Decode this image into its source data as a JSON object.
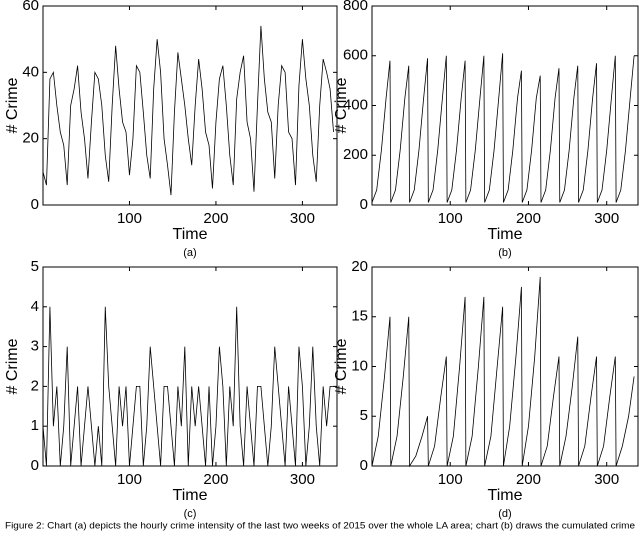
{
  "chart_data": [
    {
      "type": "line",
      "caption": "(a)",
      "xlabel": "Time",
      "ylabel": "# Crime",
      "color": "#000000",
      "xlim": [
        0,
        340
      ],
      "ylim": [
        0,
        60
      ],
      "xticks": [
        100,
        200,
        300
      ],
      "yticks": [
        0,
        20,
        40,
        60
      ],
      "x": [
        0,
        4,
        8,
        12,
        16,
        20,
        24,
        28,
        32,
        36,
        40,
        44,
        48,
        52,
        56,
        60,
        64,
        68,
        72,
        76,
        80,
        84,
        88,
        92,
        96,
        100,
        104,
        108,
        112,
        116,
        120,
        124,
        128,
        132,
        136,
        140,
        144,
        148,
        152,
        156,
        160,
        164,
        168,
        172,
        176,
        180,
        184,
        188,
        192,
        196,
        200,
        204,
        208,
        212,
        216,
        220,
        224,
        228,
        232,
        236,
        240,
        244,
        248,
        252,
        256,
        260,
        264,
        268,
        272,
        276,
        280,
        284,
        288,
        292,
        296,
        300,
        304,
        308,
        312,
        316,
        320,
        324,
        328,
        332,
        336
      ],
      "values": [
        10,
        6,
        38,
        40,
        30,
        22,
        18,
        6,
        30,
        35,
        42,
        28,
        20,
        8,
        25,
        40,
        38,
        30,
        15,
        7,
        30,
        48,
        35,
        25,
        22,
        9,
        20,
        42,
        40,
        28,
        15,
        8,
        35,
        50,
        40,
        20,
        12,
        3,
        28,
        46,
        38,
        30,
        20,
        12,
        30,
        44,
        35,
        22,
        18,
        5,
        25,
        38,
        42,
        30,
        15,
        6,
        32,
        40,
        45,
        25,
        20,
        4,
        30,
        54,
        38,
        28,
        25,
        8,
        30,
        42,
        40,
        22,
        20,
        6,
        36,
        50,
        38,
        30,
        15,
        7,
        30,
        44,
        40,
        35,
        22
      ]
    },
    {
      "type": "line",
      "caption": "(b)",
      "xlabel": "Time",
      "ylabel": "# Crime",
      "color": "#000000",
      "xlim": [
        0,
        340
      ],
      "ylim": [
        0,
        800
      ],
      "xticks": [
        100,
        200,
        300
      ],
      "yticks": [
        0,
        200,
        400,
        600,
        800
      ],
      "x": [
        0,
        6,
        12,
        18,
        23,
        24,
        30,
        36,
        42,
        47,
        48,
        54,
        60,
        66,
        71,
        72,
        78,
        84,
        90,
        95,
        96,
        102,
        108,
        114,
        119,
        120,
        126,
        132,
        138,
        143,
        144,
        150,
        156,
        162,
        167,
        168,
        174,
        180,
        186,
        191,
        192,
        198,
        204,
        210,
        215,
        216,
        222,
        228,
        234,
        239,
        240,
        246,
        252,
        258,
        263,
        264,
        270,
        276,
        282,
        287,
        288,
        294,
        300,
        306,
        311,
        312,
        318,
        324,
        330,
        335
      ],
      "values": [
        10,
        60,
        220,
        430,
        580,
        10,
        60,
        220,
        430,
        560,
        10,
        60,
        220,
        430,
        590,
        10,
        60,
        220,
        430,
        600,
        10,
        60,
        220,
        430,
        580,
        10,
        60,
        220,
        430,
        600,
        10,
        60,
        220,
        430,
        610,
        10,
        60,
        220,
        430,
        540,
        10,
        60,
        220,
        430,
        520,
        10,
        60,
        220,
        430,
        550,
        10,
        60,
        220,
        430,
        560,
        10,
        60,
        220,
        430,
        570,
        10,
        60,
        220,
        430,
        600,
        10,
        60,
        220,
        430,
        600
      ]
    },
    {
      "type": "line",
      "caption": "(c)",
      "xlabel": "Time",
      "ylabel": "# Crime",
      "color": "#000000",
      "xlim": [
        0,
        340
      ],
      "ylim": [
        0,
        5
      ],
      "xticks": [
        100,
        200,
        300
      ],
      "yticks": [
        0,
        1,
        2,
        3,
        4,
        5
      ],
      "x": [
        0,
        4,
        8,
        12,
        16,
        20,
        24,
        28,
        32,
        36,
        40,
        44,
        48,
        52,
        56,
        60,
        64,
        68,
        72,
        76,
        80,
        84,
        88,
        92,
        96,
        100,
        104,
        108,
        112,
        116,
        120,
        124,
        128,
        132,
        136,
        140,
        144,
        148,
        152,
        156,
        160,
        164,
        168,
        172,
        176,
        180,
        184,
        188,
        192,
        196,
        200,
        204,
        208,
        212,
        216,
        220,
        224,
        228,
        232,
        236,
        240,
        244,
        248,
        252,
        256,
        260,
        264,
        268,
        272,
        276,
        280,
        284,
        288,
        292,
        296,
        300,
        304,
        308,
        312,
        316,
        320,
        324,
        328,
        332,
        336
      ],
      "values": [
        1,
        0,
        4,
        1,
        2,
        0,
        1,
        3,
        0,
        1,
        2,
        0,
        1,
        2,
        1,
        0,
        1,
        0,
        4,
        2,
        1,
        0,
        2,
        1,
        2,
        0,
        1,
        2,
        2,
        0,
        1,
        3,
        2,
        1,
        0,
        2,
        2,
        1,
        0,
        2,
        1,
        3,
        0,
        2,
        1,
        2,
        1,
        0,
        2,
        0,
        1,
        3,
        2,
        0,
        2,
        1,
        4,
        1,
        0,
        2,
        1,
        0,
        2,
        2,
        1,
        0,
        1,
        3,
        2,
        1,
        0,
        2,
        1,
        0,
        3,
        2,
        0,
        1,
        3,
        1,
        0,
        2,
        1,
        2,
        2
      ]
    },
    {
      "type": "line",
      "caption": "(d)",
      "xlabel": "Time",
      "ylabel": "# Crime",
      "color": "#000000",
      "xlim": [
        0,
        340
      ],
      "ylim": [
        0,
        20
      ],
      "xticks": [
        100,
        200,
        300
      ],
      "yticks": [
        0,
        5,
        10,
        15,
        20
      ],
      "x": [
        0,
        8,
        16,
        23,
        24,
        32,
        40,
        47,
        48,
        56,
        64,
        71,
        72,
        80,
        88,
        95,
        96,
        104,
        112,
        119,
        120,
        128,
        136,
        143,
        144,
        152,
        160,
        167,
        168,
        176,
        184,
        191,
        192,
        200,
        208,
        215,
        216,
        224,
        232,
        239,
        240,
        248,
        256,
        263,
        264,
        272,
        280,
        287,
        288,
        296,
        304,
        311,
        312,
        320,
        328,
        335
      ],
      "values": [
        0,
        3,
        9,
        15,
        0,
        3,
        9,
        15,
        0,
        1,
        3,
        5,
        0,
        2,
        7,
        11,
        0,
        3,
        10,
        17,
        0,
        3,
        10,
        17,
        0,
        3,
        10,
        16,
        0,
        4,
        11,
        18,
        0,
        4,
        11,
        19,
        0,
        2,
        7,
        11,
        0,
        3,
        8,
        13,
        0,
        2,
        7,
        11,
        0,
        2,
        7,
        11,
        0,
        2,
        5,
        9
      ]
    }
  ],
  "figure_caption": "Figure 2: Chart (a) depicts the hourly crime intensity of the last two weeks of 2015 over the whole LA area; chart (b) draws the cumulated crime"
}
